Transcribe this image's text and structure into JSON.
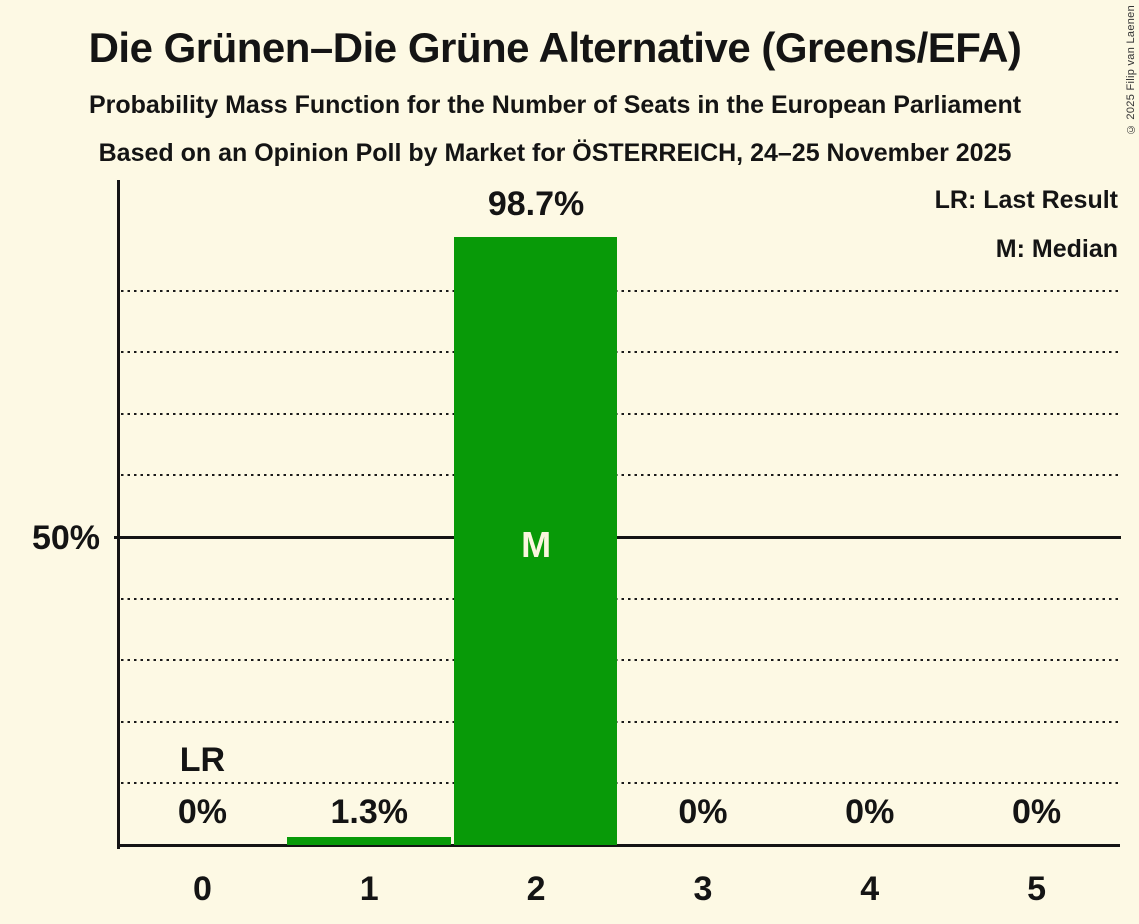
{
  "header": {
    "title": "Die Grünen–Die Grüne Alternative (Greens/EFA)",
    "subtitle_line1": "Probability Mass Function for the Number of Seats in the European Parliament",
    "subtitle_line2": "Based on an Opinion Poll by Market for ÖSTERREICH, 24–25 November 2025"
  },
  "legend": {
    "lr_label": "LR: Last Result",
    "m_label": "M: Median"
  },
  "copyright": "© 2025 Filip van Laenen",
  "axes": {
    "y_tick_label": "50%",
    "x_tick_labels": [
      "0",
      "1",
      "2",
      "3",
      "4",
      "5"
    ]
  },
  "chart_data": {
    "type": "bar",
    "title": "Die Grünen–Die Grüne Alternative (Greens/EFA)",
    "xlabel": "Number of Seats in the European Parliament",
    "ylabel": "Probability",
    "categories": [
      0,
      1,
      2,
      3,
      4,
      5
    ],
    "values": [
      0,
      1.3,
      98.7,
      0,
      0,
      0
    ],
    "value_labels": [
      "0%",
      "1.3%",
      "98.7%",
      "0%",
      "0%",
      "0%"
    ],
    "median_category_index": 2,
    "median_marker": "M",
    "last_result_category_index": 0,
    "last_result_marker": "LR",
    "ylim": [
      0,
      108
    ],
    "y_solid_line_pct": 50,
    "y_dotted_gridlines_pct": [
      10,
      20,
      30,
      40,
      60,
      70,
      80,
      90
    ],
    "grid": "horizontal-dotted",
    "legend_position": "top-right",
    "colors": {
      "background": "#FDF9E4",
      "bar": "#089A08",
      "text": "#141414",
      "label_inside_bar": "#FAF6DF"
    }
  }
}
